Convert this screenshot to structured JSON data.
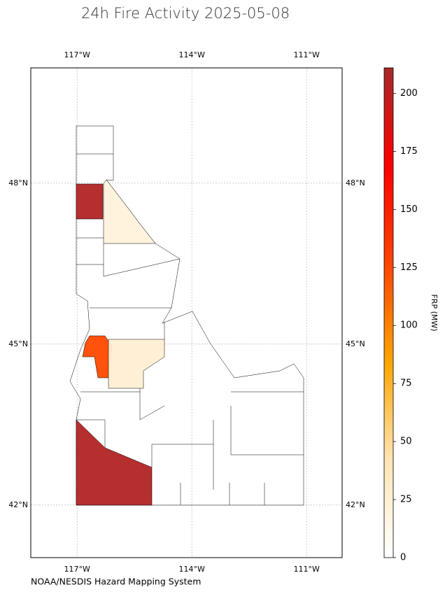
{
  "chart_data": {
    "type": "choropleth",
    "title": "24h Fire Activity 2025-05-08",
    "source": "NOAA/NESDIS Hazard Mapping System",
    "xlim": [
      -118.21,
      -110.07
    ],
    "ylim": [
      41.02,
      50.15
    ],
    "xticks": [
      {
        "value": -117,
        "label": "117°W"
      },
      {
        "value": -114,
        "label": "114°W"
      },
      {
        "value": -111,
        "label": "111°W"
      }
    ],
    "yticks": [
      {
        "value": 42,
        "label": "42°N"
      },
      {
        "value": 45,
        "label": "45°N"
      },
      {
        "value": 48,
        "label": "48°N"
      }
    ],
    "grid": true,
    "colorbar": {
      "label": "FRP (MW)",
      "lim": [
        0,
        211
      ],
      "ticks": [
        0,
        25,
        50,
        75,
        100,
        125,
        150,
        175,
        200
      ],
      "colors": [
        "#ffffff",
        "#ffe4b5",
        "#ffa500",
        "#ff4500",
        "#ff0000",
        "#a52a2a"
      ]
    },
    "regions": [
      {
        "frp": 205
      },
      {
        "frp": 20
      },
      {
        "frp": 125
      },
      {
        "frp": 25
      },
      {
        "frp": 205
      }
    ]
  }
}
